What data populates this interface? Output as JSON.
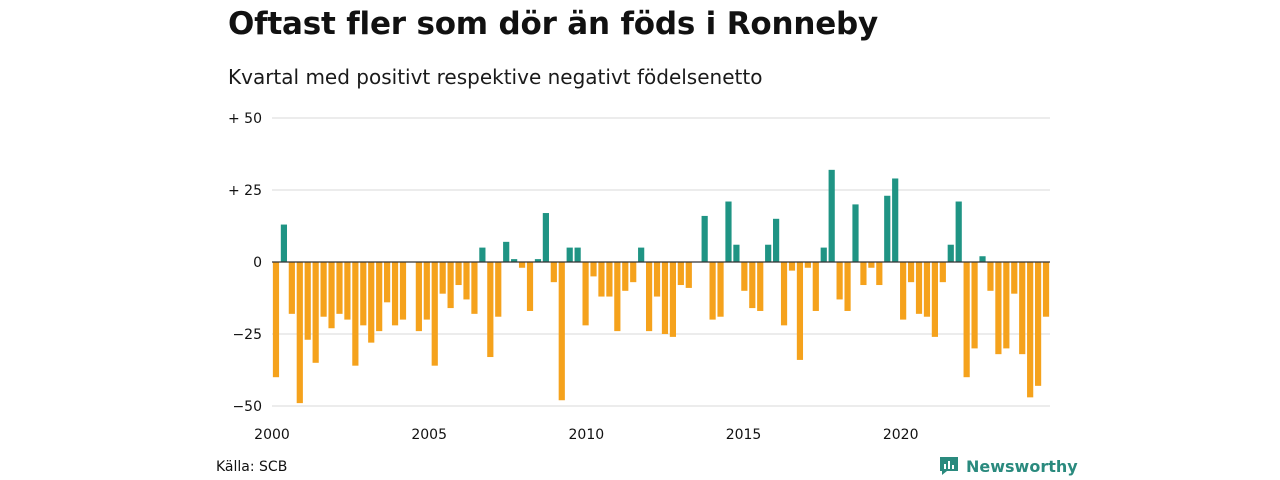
{
  "header": {
    "title": "Oftast fler som dör än föds i Ronneby",
    "subtitle": "Kvartal med positivt respektive negativt födelsenetto"
  },
  "footer": {
    "source": "Källa: SCB",
    "brand": "Newsworthy"
  },
  "colors": {
    "positive": "#1f9484",
    "negative": "#f5a21c",
    "grid": "#d9d9d9",
    "zero_line": "#333333",
    "brand": "#2a8a7e"
  },
  "chart_data": {
    "type": "bar",
    "x_start": 2000,
    "periods_per_year": 4,
    "xlim": [
      2000,
      2024.75
    ],
    "ylim": [
      -50,
      50
    ],
    "y_ticks": [
      {
        "value": 50,
        "label": "+ 50"
      },
      {
        "value": 25,
        "label": "+ 25"
      },
      {
        "value": 0,
        "label": "0"
      },
      {
        "value": -25,
        "label": "−25"
      },
      {
        "value": -50,
        "label": "−50"
      }
    ],
    "x_ticks": [
      {
        "value": 2000,
        "label": "2000"
      },
      {
        "value": 2005,
        "label": "2005"
      },
      {
        "value": 2010,
        "label": "2010"
      },
      {
        "value": 2015,
        "label": "2015"
      },
      {
        "value": 2020,
        "label": "2020"
      }
    ],
    "grid": true,
    "values": [
      -40,
      13,
      -18,
      -49,
      -27,
      -35,
      -19,
      -23,
      -18,
      -20,
      -36,
      -22,
      -28,
      -24,
      -14,
      -22,
      -20,
      0,
      -24,
      -20,
      -36,
      -11,
      -16,
      -8,
      -13,
      -18,
      5,
      -33,
      -19,
      7,
      1,
      -2,
      -17,
      1,
      17,
      -7,
      -48,
      5,
      5,
      -22,
      -5,
      -12,
      -12,
      -24,
      -10,
      -7,
      5,
      -24,
      -12,
      -25,
      -26,
      -8,
      -9,
      0,
      16,
      -20,
      -19,
      21,
      6,
      -10,
      -16,
      -17,
      6,
      15,
      -22,
      -3,
      -34,
      -2,
      -17,
      5,
      32,
      -13,
      -17,
      20,
      -8,
      -2,
      -8,
      23,
      29,
      -20,
      -7,
      -18,
      -19,
      -26,
      -7,
      6,
      21,
      -40,
      -30,
      2,
      -10,
      -32,
      -30,
      -11,
      -32,
      -47,
      -43,
      -19
    ]
  }
}
